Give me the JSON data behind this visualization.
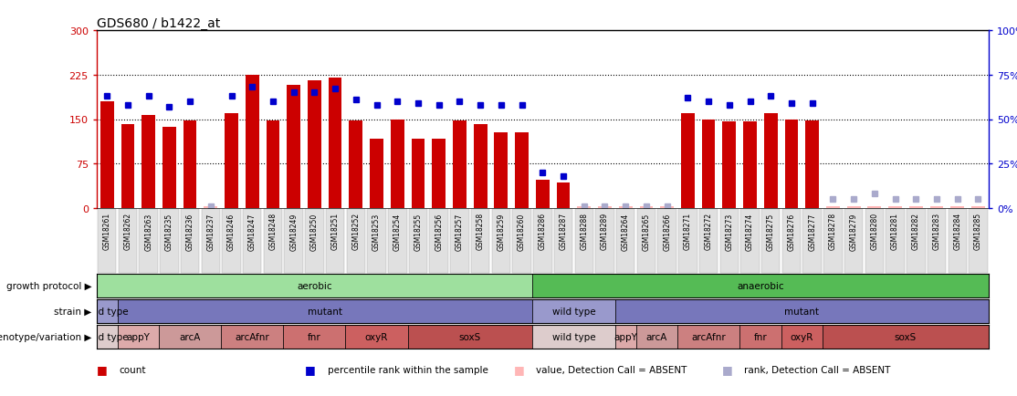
{
  "title": "GDS680 / b1422_at",
  "samples": [
    "GSM18261",
    "GSM18262",
    "GSM18263",
    "GSM18235",
    "GSM18236",
    "GSM18237",
    "GSM18246",
    "GSM18247",
    "GSM18248",
    "GSM18249",
    "GSM18250",
    "GSM18251",
    "GSM18252",
    "GSM18253",
    "GSM18254",
    "GSM18255",
    "GSM18256",
    "GSM18257",
    "GSM18258",
    "GSM18259",
    "GSM18260",
    "GSM18286",
    "GSM18287",
    "GSM18288",
    "GSM18289",
    "GSM18264",
    "GSM18265",
    "GSM18266",
    "GSM18271",
    "GSM18272",
    "GSM18273",
    "GSM18274",
    "GSM18275",
    "GSM18276",
    "GSM18277",
    "GSM18278",
    "GSM18279",
    "GSM18280",
    "GSM18281",
    "GSM18282",
    "GSM18283",
    "GSM18284",
    "GSM18285"
  ],
  "counts": [
    180,
    141,
    157,
    137,
    147,
    3,
    160,
    225,
    148,
    208,
    215,
    220,
    148,
    117,
    150,
    117,
    117,
    147,
    141,
    127,
    127,
    47,
    43,
    3,
    3,
    3,
    3,
    3,
    160,
    150,
    146,
    146,
    160,
    149,
    148,
    3,
    3,
    3,
    3,
    3,
    3,
    3,
    3
  ],
  "percentile_ranks": [
    63,
    58,
    63,
    57,
    60,
    1,
    63,
    68,
    60,
    65,
    65,
    67,
    61,
    58,
    60,
    59,
    58,
    60,
    58,
    58,
    58,
    20,
    18,
    1,
    1,
    1,
    1,
    1,
    62,
    60,
    58,
    60,
    63,
    59,
    59,
    5,
    5,
    8,
    5,
    5,
    5,
    5,
    5
  ],
  "absent_counts": [
    false,
    false,
    false,
    false,
    false,
    true,
    false,
    false,
    false,
    false,
    false,
    false,
    false,
    false,
    false,
    false,
    false,
    false,
    false,
    false,
    false,
    false,
    false,
    true,
    true,
    true,
    true,
    true,
    false,
    false,
    false,
    false,
    false,
    false,
    false,
    true,
    true,
    true,
    true,
    true,
    true,
    true,
    true
  ],
  "absent_ranks": [
    false,
    false,
    false,
    false,
    false,
    true,
    false,
    false,
    false,
    false,
    false,
    false,
    false,
    false,
    false,
    false,
    false,
    false,
    false,
    false,
    false,
    false,
    false,
    true,
    true,
    true,
    true,
    true,
    false,
    false,
    false,
    false,
    false,
    false,
    false,
    true,
    true,
    true,
    true,
    true,
    true,
    true,
    true
  ],
  "growth_protocol_groups": [
    {
      "label": "aerobic",
      "start": 0,
      "end": 20,
      "color": "#9EE09E"
    },
    {
      "label": "anaerobic",
      "start": 21,
      "end": 42,
      "color": "#55BB55"
    }
  ],
  "strain_groups": [
    {
      "label": "wild type",
      "start": 0,
      "end": 0,
      "color": "#9999CC"
    },
    {
      "label": "mutant",
      "start": 1,
      "end": 20,
      "color": "#7777BB"
    },
    {
      "label": "wild type",
      "start": 21,
      "end": 24,
      "color": "#9999CC"
    },
    {
      "label": "mutant",
      "start": 25,
      "end": 42,
      "color": "#7777BB"
    }
  ],
  "genotype_groups": [
    {
      "label": "wild type",
      "start": 0,
      "end": 0,
      "color": "#DDCCCC"
    },
    {
      "label": "appY",
      "start": 1,
      "end": 2,
      "color": "#DDAAAA"
    },
    {
      "label": "arcA",
      "start": 3,
      "end": 5,
      "color": "#CC9999"
    },
    {
      "label": "arcAfnr",
      "start": 6,
      "end": 8,
      "color": "#CC8080"
    },
    {
      "label": "fnr",
      "start": 9,
      "end": 11,
      "color": "#CC7070"
    },
    {
      "label": "oxyR",
      "start": 12,
      "end": 14,
      "color": "#CC6060"
    },
    {
      "label": "soxS",
      "start": 15,
      "end": 20,
      "color": "#BB5050"
    },
    {
      "label": "wild type",
      "start": 21,
      "end": 24,
      "color": "#DDCCCC"
    },
    {
      "label": "appY",
      "start": 25,
      "end": 25,
      "color": "#DDAAAA"
    },
    {
      "label": "arcA",
      "start": 26,
      "end": 27,
      "color": "#CC9999"
    },
    {
      "label": "arcAfnr",
      "start": 28,
      "end": 30,
      "color": "#CC8080"
    },
    {
      "label": "fnr",
      "start": 31,
      "end": 32,
      "color": "#CC7070"
    },
    {
      "label": "oxyR",
      "start": 33,
      "end": 34,
      "color": "#CC6060"
    },
    {
      "label": "soxS",
      "start": 35,
      "end": 42,
      "color": "#BB5050"
    }
  ],
  "ylim_left": [
    0,
    300
  ],
  "ylim_right": [
    0,
    100
  ],
  "yticks_left": [
    0,
    75,
    150,
    225,
    300
  ],
  "yticks_right": [
    0,
    25,
    50,
    75,
    100
  ],
  "ytick_labels_right": [
    "0%",
    "25%",
    "50%",
    "75%",
    "100%"
  ],
  "hlines": [
    75,
    150,
    225
  ],
  "bar_color": "#CC0000",
  "dot_color": "#0000CC",
  "absent_bar_color": "#FFB6B6",
  "absent_dot_color": "#AAAACC",
  "left_axis_color": "#CC0000",
  "right_axis_color": "#0000CC",
  "legend_items": [
    {
      "label": "count",
      "color": "#CC0000"
    },
    {
      "label": "percentile rank within the sample",
      "color": "#0000CC"
    },
    {
      "label": "value, Detection Call = ABSENT",
      "color": "#FFB6B6"
    },
    {
      "label": "rank, Detection Call = ABSENT",
      "color": "#AAAACC"
    }
  ]
}
